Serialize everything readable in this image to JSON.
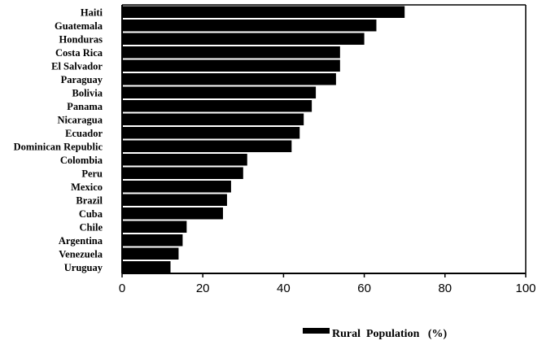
{
  "chart_data": {
    "type": "bar",
    "orientation": "horizontal",
    "categories": [
      "Haiti",
      "Guatemala",
      "Honduras",
      "Costa  Rica",
      "El  Salvador",
      "Paraguay",
      "Bolivia",
      "Panama",
      "Nicaragua",
      "Ecuador",
      "Dominican   Republic",
      "Colombia",
      "Peru",
      "Mexico",
      "Brazil",
      "Cuba",
      "Chile",
      "Argentina",
      "Venezuela",
      "Uruguay"
    ],
    "series": [
      {
        "name": "Rural  Population   (%)",
        "values": [
          70,
          63,
          60,
          54,
          54,
          53,
          48,
          47,
          45,
          44,
          42,
          31,
          30,
          27,
          26,
          25,
          16,
          15,
          14,
          12
        ]
      }
    ],
    "xlabel": "",
    "ylabel": "",
    "xlim": [
      0,
      100
    ],
    "x_ticks": [
      "0",
      "20",
      "40",
      "60",
      "80",
      "100"
    ],
    "grid": false,
    "legend_position": "bottom-center",
    "bar_color": "#000000"
  }
}
